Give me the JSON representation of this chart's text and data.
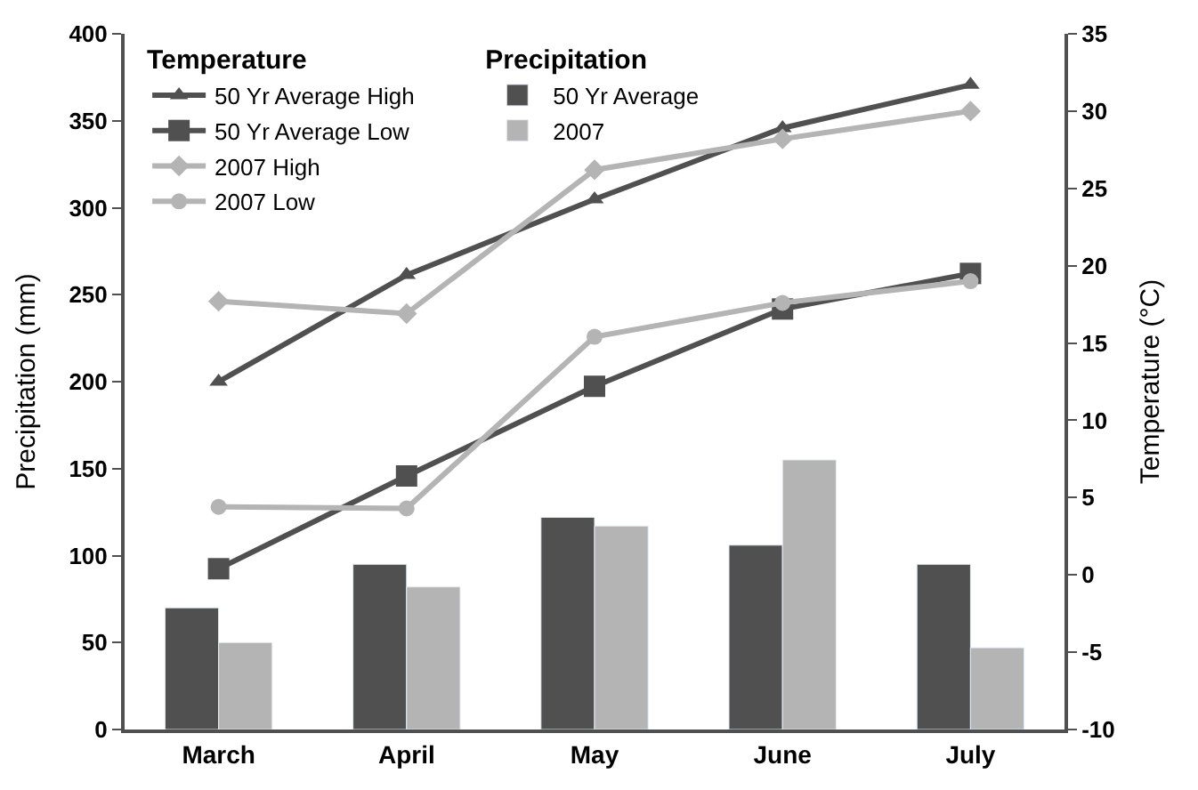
{
  "chart_data": {
    "type": "bar",
    "categories": [
      "March",
      "April",
      "May",
      "June",
      "July"
    ],
    "ylabel": "Precipitation (mm)",
    "y2label": "Temperature (°C)",
    "legend_title": [
      "Temperature",
      "Precipitation"
    ],
    "legend": "top left",
    "ylim": [
      0,
      400
    ],
    "yticks": [
      0,
      50,
      100,
      150,
      200,
      250,
      300,
      350,
      400
    ],
    "y2lim": [
      -10,
      35
    ],
    "y2ticks": [
      -10,
      -5,
      0,
      5,
      10,
      15,
      20,
      25,
      30,
      35
    ],
    "series": [
      {
        "name": "50 Yr Average High",
        "type": "line",
        "axis": "y2",
        "marker": "triangle",
        "color": "#505050",
        "values": [
          12.5,
          19.4,
          24.3,
          28.9,
          31.7
        ]
      },
      {
        "name": "50 Yr Average Low",
        "type": "line",
        "axis": "y2",
        "marker": "square",
        "color": "#505050",
        "values": [
          0.4,
          6.4,
          12.2,
          17.2,
          19.5
        ]
      },
      {
        "name": "2007 High",
        "type": "line",
        "axis": "y2",
        "marker": "diamond",
        "color": "#b4b4b4",
        "values": [
          17.7,
          16.9,
          26.2,
          28.2,
          30.0
        ]
      },
      {
        "name": "2007 Low",
        "type": "line",
        "axis": "y2",
        "marker": "circle",
        "color": "#b4b4b4",
        "values": [
          4.4,
          4.3,
          15.4,
          17.6,
          19.0
        ]
      },
      {
        "name": "50 Yr Average",
        "axis": "y",
        "color": "#505050",
        "values": [
          70,
          95,
          122,
          106,
          95
        ]
      },
      {
        "name": "2007",
        "axis": "y",
        "color": "#b4b4b4",
        "values": [
          50,
          82,
          117,
          155,
          47
        ]
      }
    ]
  }
}
